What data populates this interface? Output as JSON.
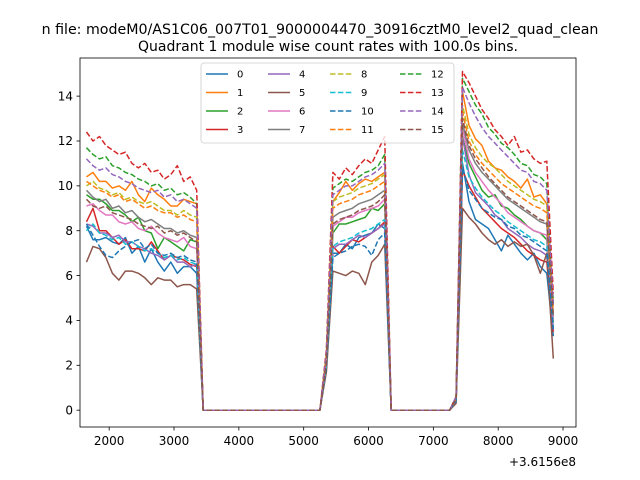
{
  "header_text": "n file: modeM0/AS1C06_007T01_9000004470_30916cztM0_level2_quad_clean",
  "chart_data": {
    "type": "line",
    "title": "Quadrant 1 module wise count rates with 100.0s bins.",
    "xlabel": "",
    "ylabel": "",
    "x_offset_label": "+3.6156e8",
    "xlim": [
      1550,
      9200
    ],
    "ylim": [
      -0.75,
      15.7
    ],
    "xticks": [
      2000,
      3000,
      4000,
      5000,
      6000,
      7000,
      8000,
      9000
    ],
    "yticks": [
      0,
      2,
      4,
      6,
      8,
      10,
      12,
      14
    ],
    "legend": {
      "position": "top-center",
      "ncol": 4
    },
    "segments": [
      {
        "x_start": 1650,
        "x_end": 3350,
        "step": 100
      },
      {
        "x_start": 5350,
        "x_end": 6250,
        "step": 100
      },
      {
        "x_start": 7350,
        "x_end": 8850,
        "step": 100
      }
    ],
    "zero_x": [
      3450,
      3550,
      3650,
      3750,
      3850,
      3950,
      4050,
      4150,
      4250,
      4350,
      4450,
      4550,
      4650,
      4750,
      4850,
      4950,
      5050,
      5150,
      5250,
      6350,
      6450,
      6550,
      6650,
      6750,
      6850,
      6950,
      7050,
      7150,
      7250
    ],
    "series": [
      {
        "name": "0",
        "color": "#1f77b4",
        "dash": "solid",
        "seg1": [
          8.2,
          7.6,
          7.6,
          7.7,
          7.5,
          7.4,
          7.7,
          7.0,
          7.3,
          6.6,
          7.2,
          6.6,
          6.2,
          6.6,
          6.1,
          6.4,
          6.4,
          6.1
        ],
        "seg2": [
          2.0,
          7.0,
          7.0,
          7.4,
          7.2,
          7.7,
          7.8,
          7.9,
          8.3,
          8.1
        ],
        "seg3": [
          0.4,
          11.0,
          9.3,
          8.5,
          8.3,
          8.1,
          7.6,
          7.1,
          7.8,
          7.4,
          7.0,
          6.7,
          7.0,
          6.4,
          6.1,
          3.3
        ]
      },
      {
        "name": "1",
        "color": "#ff7f0e",
        "dash": "solid",
        "seg1": [
          10.4,
          10.6,
          10.2,
          10.2,
          9.9,
          10.0,
          9.8,
          10.2,
          9.6,
          9.3,
          9.9,
          9.6,
          9.4,
          9.1,
          9.1,
          9.4,
          9.3,
          9.2
        ],
        "seg2": [
          2.5,
          9.3,
          9.7,
          10.2,
          9.8,
          10.1,
          10.3,
          10.2,
          10.4,
          10.6
        ],
        "seg3": [
          0.5,
          14.2,
          12.7,
          12.1,
          11.8,
          11.1,
          10.8,
          10.7,
          10.4,
          10.2,
          9.9,
          10.3,
          9.5,
          9.6,
          9.2,
          4.7
        ]
      },
      {
        "name": "2",
        "color": "#2ca02c",
        "dash": "solid",
        "seg1": [
          9.6,
          9.4,
          9.4,
          9.2,
          8.9,
          8.9,
          8.7,
          8.4,
          8.6,
          8.0,
          7.9,
          7.2,
          7.7,
          7.5,
          7.3,
          7.1,
          7.6,
          7.5
        ],
        "seg2": [
          2.1,
          7.9,
          8.3,
          8.3,
          8.4,
          8.5,
          8.6,
          9.0,
          8.9,
          9.2
        ],
        "seg3": [
          0.5,
          12.2,
          11.0,
          10.4,
          9.8,
          9.5,
          9.6,
          9.1,
          9.0,
          8.7,
          8.5,
          8.2,
          8.0,
          7.9,
          7.6,
          3.9
        ]
      },
      {
        "name": "3",
        "color": "#d62728",
        "dash": "solid",
        "seg1": [
          8.4,
          9.0,
          8.0,
          8.0,
          7.7,
          7.4,
          7.6,
          7.2,
          7.2,
          7.1,
          7.5,
          7.1,
          6.7,
          6.9,
          6.8,
          6.7,
          6.5,
          6.4
        ],
        "seg2": [
          1.9,
          7.3,
          7.0,
          7.3,
          7.6,
          7.5,
          7.7,
          7.9,
          8.1,
          8.4
        ],
        "seg3": [
          0.4,
          10.7,
          10.0,
          9.5,
          9.0,
          8.7,
          8.4,
          8.1,
          7.9,
          7.7,
          7.4,
          7.1,
          6.9,
          6.7,
          6.6,
          3.5
        ]
      },
      {
        "name": "4",
        "color": "#9467bd",
        "dash": "solid",
        "seg1": [
          8.3,
          8.2,
          7.9,
          7.9,
          7.7,
          7.8,
          7.5,
          7.5,
          7.3,
          7.2,
          7.0,
          6.9,
          6.7,
          6.9,
          6.6,
          6.6,
          6.4,
          6.5
        ],
        "seg2": [
          1.9,
          7.2,
          7.4,
          7.4,
          7.6,
          7.8,
          7.7,
          7.9,
          8.1,
          8.3
        ],
        "seg3": [
          0.4,
          12.2,
          10.5,
          9.7,
          9.4,
          9.1,
          8.7,
          8.5,
          8.1,
          7.9,
          7.7,
          7.4,
          7.2,
          7.1,
          6.9,
          3.6
        ]
      },
      {
        "name": "5",
        "color": "#8c564b",
        "dash": "solid",
        "seg1": [
          6.6,
          7.3,
          7.2,
          6.8,
          6.1,
          5.8,
          6.2,
          6.2,
          6.1,
          5.9,
          5.6,
          5.9,
          5.8,
          5.8,
          5.5,
          5.6,
          5.6,
          5.4
        ],
        "seg2": [
          1.7,
          6.2,
          6.1,
          6.0,
          6.2,
          6.1,
          5.6,
          6.6,
          6.9,
          7.4
        ],
        "seg3": [
          0.3,
          9.0,
          8.6,
          8.3,
          7.9,
          7.6,
          7.4,
          7.6,
          7.3,
          7.5,
          7.3,
          7.4,
          6.9,
          6.1,
          7.0,
          2.3
        ]
      },
      {
        "name": "6",
        "color": "#e377c2",
        "dash": "solid",
        "seg1": [
          9.1,
          9.2,
          8.9,
          8.7,
          8.7,
          8.4,
          8.3,
          8.4,
          8.1,
          8.0,
          8.2,
          7.9,
          7.7,
          7.6,
          7.5,
          7.7,
          7.3,
          7.2
        ],
        "seg2": [
          2.1,
          8.2,
          8.4,
          8.6,
          8.6,
          8.8,
          8.9,
          9.0,
          9.1,
          9.4
        ],
        "seg3": [
          0.5,
          12.6,
          11.2,
          10.6,
          10.2,
          9.8,
          9.5,
          9.2,
          8.8,
          8.6,
          8.4,
          8.2,
          8.0,
          7.9,
          7.8,
          4.0
        ]
      },
      {
        "name": "7",
        "color": "#7f7f7f",
        "dash": "solid",
        "seg1": [
          9.8,
          9.5,
          9.3,
          9.4,
          9.0,
          9.1,
          8.8,
          8.9,
          8.6,
          8.4,
          8.5,
          8.3,
          8.1,
          8.1,
          7.9,
          8.0,
          7.8,
          7.7
        ],
        "seg2": [
          2.2,
          8.6,
          8.8,
          8.9,
          9.0,
          9.2,
          9.3,
          9.4,
          9.6,
          9.8
        ],
        "seg3": [
          0.5,
          12.8,
          11.6,
          11.0,
          10.6,
          10.3,
          10.0,
          9.7,
          9.4,
          9.2,
          9.0,
          8.8,
          8.6,
          8.4,
          8.3,
          4.2
        ]
      },
      {
        "name": "8",
        "color": "#bcbd22",
        "dash": "dashed",
        "seg1": [
          10.0,
          10.2,
          9.9,
          9.8,
          9.6,
          9.7,
          9.4,
          9.5,
          9.3,
          9.2,
          9.3,
          9.1,
          8.9,
          8.9,
          8.7,
          8.9,
          8.7,
          8.6
        ],
        "seg2": [
          2.4,
          9.3,
          9.5,
          9.6,
          9.7,
          9.9,
          10.0,
          10.1,
          10.3,
          10.5
        ],
        "seg3": [
          0.5,
          13.6,
          12.3,
          11.7,
          11.3,
          11.0,
          10.8,
          10.5,
          10.2,
          10.0,
          9.8,
          9.6,
          9.4,
          9.3,
          9.1,
          4.6
        ]
      },
      {
        "name": "9",
        "color": "#17becf",
        "dash": "dashed",
        "seg1": [
          8.0,
          8.3,
          7.9,
          7.8,
          7.6,
          7.7,
          7.4,
          7.5,
          7.3,
          7.1,
          7.2,
          7.0,
          6.8,
          6.9,
          6.7,
          6.8,
          6.6,
          6.5
        ],
        "seg2": [
          2.0,
          7.3,
          7.5,
          7.6,
          7.7,
          7.9,
          8.0,
          8.1,
          8.3,
          8.5
        ],
        "seg3": [
          0.4,
          11.6,
          10.4,
          9.9,
          9.5,
          9.2,
          8.9,
          8.7,
          8.4,
          8.2,
          8.0,
          7.8,
          7.6,
          7.5,
          7.3,
          3.7
        ]
      },
      {
        "name": "10",
        "color": "#1f77b4",
        "dash": "dashed",
        "seg1": [
          8.3,
          7.8,
          7.3,
          6.9,
          6.8,
          7.1,
          7.3,
          7.5,
          7.6,
          7.2,
          7.4,
          7.0,
          6.9,
          7.0,
          6.8,
          6.9,
          6.7,
          6.6
        ],
        "seg2": [
          1.9,
          6.8,
          7.0,
          7.1,
          7.3,
          7.4,
          7.3,
          6.9,
          7.6,
          7.9
        ],
        "seg3": [
          0.4,
          10.8,
          9.8,
          9.4,
          9.0,
          8.8,
          8.6,
          8.5,
          8.2,
          8.1,
          7.8,
          7.7,
          7.5,
          7.3,
          7.1,
          3.6
        ]
      },
      {
        "name": "11",
        "color": "#ff7f0e",
        "dash": "dashed",
        "seg1": [
          10.2,
          10.0,
          9.8,
          9.7,
          9.5,
          9.6,
          9.3,
          9.4,
          9.2,
          9.0,
          9.1,
          8.9,
          8.8,
          8.8,
          8.6,
          8.7,
          8.5,
          8.4
        ],
        "seg2": [
          2.3,
          9.0,
          9.2,
          9.3,
          9.4,
          9.6,
          9.7,
          9.8,
          10.0,
          10.2
        ],
        "seg3": [
          0.5,
          13.3,
          12.0,
          11.4,
          11.0,
          10.7,
          10.4,
          10.1,
          9.9,
          9.7,
          9.5,
          9.3,
          9.1,
          9.0,
          8.8,
          4.4
        ]
      },
      {
        "name": "12",
        "color": "#2ca02c",
        "dash": "dashed",
        "seg1": [
          11.7,
          11.4,
          11.2,
          11.3,
          10.9,
          10.8,
          10.6,
          10.5,
          10.3,
          10.2,
          10.0,
          10.1,
          9.8,
          9.9,
          9.6,
          9.7,
          9.5,
          9.2
        ],
        "seg2": [
          2.6,
          9.9,
          10.1,
          10.3,
          10.2,
          10.4,
          10.6,
          10.7,
          10.9,
          11.4
        ],
        "seg3": [
          0.6,
          14.8,
          14.2,
          13.6,
          13.2,
          12.6,
          12.3,
          11.9,
          11.7,
          11.4,
          11.0,
          10.9,
          10.5,
          10.4,
          10.1,
          4.8
        ]
      },
      {
        "name": "13",
        "color": "#d62728",
        "dash": "dashed",
        "seg1": [
          12.4,
          12.0,
          12.2,
          11.8,
          11.6,
          11.4,
          11.5,
          11.0,
          10.8,
          11.0,
          10.6,
          10.7,
          10.3,
          10.5,
          10.9,
          10.2,
          10.4,
          9.8
        ],
        "seg2": [
          2.7,
          10.6,
          10.3,
          10.8,
          10.5,
          10.9,
          11.2,
          11.0,
          11.6,
          12.2
        ],
        "seg3": [
          0.6,
          15.1,
          14.6,
          14.0,
          13.4,
          13.0,
          12.5,
          12.2,
          11.8,
          12.2,
          11.5,
          11.6,
          11.2,
          11.0,
          11.1,
          5.2
        ]
      },
      {
        "name": "14",
        "color": "#9467bd",
        "dash": "dashed",
        "seg1": [
          11.2,
          10.9,
          10.7,
          10.8,
          10.5,
          10.4,
          10.2,
          10.1,
          9.9,
          9.8,
          9.7,
          9.8,
          9.5,
          9.6,
          9.3,
          9.4,
          9.2,
          9.0
        ],
        "seg2": [
          2.5,
          9.6,
          9.8,
          10.0,
          10.0,
          10.2,
          10.4,
          10.5,
          10.7,
          11.0
        ],
        "seg3": [
          0.6,
          14.4,
          13.7,
          13.1,
          12.6,
          12.2,
          11.9,
          11.6,
          11.3,
          11.0,
          10.7,
          10.6,
          10.2,
          10.1,
          9.8,
          4.7
        ]
      },
      {
        "name": "15",
        "color": "#8c564b",
        "dash": "dashed",
        "seg1": [
          9.4,
          9.1,
          9.0,
          9.1,
          8.8,
          8.7,
          8.6,
          8.5,
          8.3,
          8.2,
          8.1,
          8.2,
          7.9,
          8.0,
          7.8,
          7.9,
          7.7,
          7.5
        ],
        "seg2": [
          2.1,
          8.3,
          8.5,
          8.6,
          8.7,
          8.9,
          9.0,
          9.1,
          9.3,
          9.6
        ],
        "seg3": [
          0.5,
          13.0,
          11.8,
          11.2,
          10.8,
          10.4,
          10.1,
          9.8,
          9.5,
          9.3,
          9.1,
          8.9,
          8.7,
          8.5,
          8.4,
          4.2
        ]
      }
    ]
  }
}
